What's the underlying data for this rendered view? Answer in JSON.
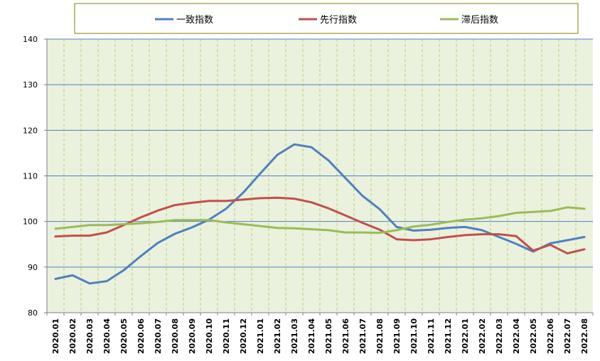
{
  "chart_data": {
    "type": "line",
    "title": "",
    "xlabel": "",
    "ylabel": "",
    "ylim": [
      80,
      140
    ],
    "yticks": [
      "80",
      "90",
      "100",
      "110",
      "120",
      "130",
      "140"
    ],
    "grid": true,
    "legend_position": "top",
    "categories": [
      "2020.01",
      "2020.02",
      "2020.03",
      "2020.04",
      "2020.05",
      "2020.06",
      "2020.07",
      "2020.08",
      "2020.09",
      "2020.10",
      "2020.11",
      "2020.12",
      "2021.01",
      "2021.02",
      "2021.03",
      "2021.04",
      "2021.05",
      "2021.06",
      "2021.07",
      "2021.08",
      "2021.09",
      "2021.10",
      "2021.11",
      "2021.12",
      "2022.01",
      "2022.02",
      "2022.03",
      "2022.04",
      "2022.05",
      "2022.06",
      "2022.07",
      "2022.08"
    ],
    "series": [
      {
        "name": "一致指数",
        "color": "#4F81BD",
        "values": [
          87.4,
          88.2,
          86.4,
          86.9,
          89.3,
          92.4,
          95.3,
          97.3,
          98.7,
          100.4,
          102.8,
          106.3,
          110.5,
          114.6,
          116.9,
          116.3,
          113.4,
          109.5,
          105.6,
          102.7,
          98.8,
          98.0,
          98.2,
          98.6,
          98.8,
          98.1,
          96.6,
          95.1,
          93.4,
          95.2,
          95.9,
          96.6
        ]
      },
      {
        "name": "先行指数",
        "color": "#C0504D",
        "values": [
          96.7,
          96.9,
          96.9,
          97.6,
          99.2,
          100.9,
          102.4,
          103.6,
          104.1,
          104.5,
          104.5,
          104.8,
          105.1,
          105.2,
          105.0,
          104.2,
          102.9,
          101.3,
          99.7,
          98.2,
          96.1,
          95.9,
          96.1,
          96.6,
          97.0,
          97.2,
          97.2,
          96.8,
          93.6,
          94.9,
          93.0,
          93.9
        ]
      },
      {
        "name": "滞后指数",
        "color": "#9BBB59",
        "values": [
          98.4,
          98.8,
          99.2,
          99.2,
          99.4,
          99.6,
          99.9,
          100.3,
          100.3,
          100.3,
          99.8,
          99.4,
          99.0,
          98.6,
          98.5,
          98.3,
          98.1,
          97.6,
          97.6,
          97.5,
          98.1,
          98.9,
          99.3,
          99.9,
          100.4,
          100.7,
          101.2,
          101.9,
          102.1,
          102.3,
          103.1,
          102.8
        ]
      }
    ]
  }
}
